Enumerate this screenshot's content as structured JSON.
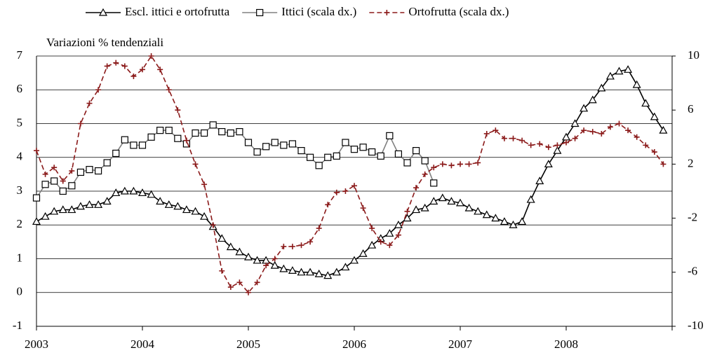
{
  "chart_data": {
    "type": "line",
    "annotation": "Variazioni % tendenziali",
    "categories": [
      "2003",
      null,
      null,
      null,
      null,
      null,
      null,
      null,
      null,
      null,
      null,
      null,
      "2004",
      null,
      null,
      null,
      null,
      null,
      null,
      null,
      null,
      null,
      null,
      null,
      "2005",
      null,
      null,
      null,
      null,
      null,
      null,
      null,
      null,
      null,
      null,
      null,
      "2006",
      null,
      null,
      null,
      null,
      null,
      null,
      null,
      null,
      null,
      null,
      null,
      "2007",
      null,
      null,
      null,
      null,
      null,
      null,
      null,
      null,
      null,
      null,
      null,
      "2008",
      null,
      null,
      null,
      null,
      null,
      null,
      null,
      null,
      null,
      null,
      null
    ],
    "ylim": [
      -1,
      7
    ],
    "yticks": [
      -1,
      0,
      1,
      2,
      3,
      4,
      5,
      6,
      7
    ],
    "y2lim": [
      -10,
      10
    ],
    "y2ticks": [
      -10,
      -6,
      -2,
      2,
      6,
      10
    ],
    "grid": true,
    "legend": "top",
    "series": [
      {
        "name": "Escl. ittici e ortofrutta",
        "color": "#000000",
        "marker": "triangle",
        "dash": false,
        "values": [
          2.1,
          2.25,
          2.4,
          2.45,
          2.45,
          2.55,
          2.6,
          2.6,
          2.7,
          2.95,
          3.0,
          3.0,
          2.95,
          2.9,
          2.7,
          2.6,
          2.55,
          2.45,
          2.4,
          2.25,
          1.95,
          1.6,
          1.35,
          1.2,
          1.05,
          0.95,
          0.95,
          0.8,
          0.7,
          0.65,
          0.6,
          0.6,
          0.55,
          0.5,
          0.6,
          0.75,
          0.95,
          1.15,
          1.4,
          1.6,
          1.75,
          2.0,
          2.2,
          2.45,
          2.5,
          2.7,
          2.8,
          2.7,
          2.65,
          2.5,
          2.4,
          2.3,
          2.2,
          2.1,
          2.0,
          2.1,
          2.75,
          3.3,
          3.8,
          4.2,
          4.6,
          5.0,
          5.45,
          5.7,
          6.05,
          6.4,
          6.55,
          6.6,
          6.15,
          5.6,
          5.2,
          4.8
        ]
      },
      {
        "name": "Ittici (scala dx.)",
        "color": "#808080",
        "marker": "square",
        "dash": false,
        "axis": "y2",
        "values": [
          -0.5,
          0.5,
          0.75,
          0,
          0.4,
          1.4,
          1.6,
          1.5,
          2.1,
          2.8,
          3.8,
          3.4,
          3.4,
          4,
          4.5,
          4.5,
          3.9,
          3.5,
          4.3,
          4.3,
          4.9,
          4.4,
          4.3,
          4.4,
          3.6,
          2.9,
          3.3,
          3.6,
          3.4,
          3.5,
          3.0,
          2.5,
          1.9,
          2.5,
          2.6,
          3.6,
          3.1,
          3.25,
          2.9,
          2.6,
          4.1,
          2.75,
          2.1,
          3.0,
          2.25,
          0.6,
          null,
          null,
          null,
          null,
          null,
          null,
          null,
          null,
          null,
          null,
          null,
          null,
          null,
          null,
          null,
          null,
          null,
          null,
          null,
          null,
          null,
          null,
          null,
          null,
          null,
          null
        ]
      },
      {
        "name": "Ortofrutta (scala dx.)",
        "color": "#8b1a1a",
        "marker": "plus",
        "dash": true,
        "axis": "y2",
        "values": [
          3.0,
          1.25,
          1.75,
          0.75,
          1.5,
          5,
          6.5,
          7.5,
          9.25,
          9.5,
          9.25,
          8.5,
          9,
          10,
          9,
          7.5,
          6,
          3.75,
          2,
          0.5,
          -2.5,
          -5.9,
          -7.1,
          -6.75,
          -7.5,
          -6.75,
          -5.5,
          -5,
          -4.1,
          -4.1,
          -4,
          -3.75,
          -2.75,
          -1,
          -0.1,
          0,
          0.4,
          -1.25,
          -2.75,
          -3.75,
          -4,
          -3.25,
          -1.5,
          0.25,
          1.25,
          1.75,
          2,
          1.9,
          2,
          2,
          2.1,
          4.25,
          4.5,
          3.9,
          3.9,
          3.75,
          3.4,
          3.5,
          3.25,
          3.4,
          3.6,
          3.9,
          4.5,
          4.4,
          4.25,
          4.75,
          5,
          4.5,
          4,
          3.4,
          2.9,
          2
        ]
      }
    ]
  }
}
